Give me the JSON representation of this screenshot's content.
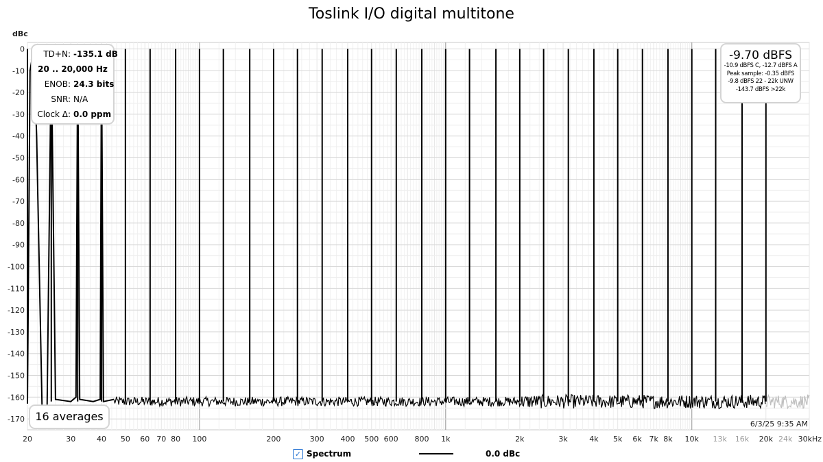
{
  "chart_data": {
    "type": "line",
    "title": "Toslink I/O digital multitone",
    "ylabel": "dBc",
    "xscale": "log",
    "xlim": [
      20,
      30000
    ],
    "ylim": [
      -175,
      3
    ],
    "y_ticks": [
      0,
      -10,
      -20,
      -30,
      -40,
      -50,
      -60,
      -70,
      -80,
      -90,
      -100,
      -110,
      -120,
      -130,
      -140,
      -150,
      -160,
      -170
    ],
    "x_ticks": [
      {
        "v": 20,
        "label": "20"
      },
      {
        "v": 30,
        "label": "30"
      },
      {
        "v": 40,
        "label": "40"
      },
      {
        "v": 50,
        "label": "50"
      },
      {
        "v": 60,
        "label": "60"
      },
      {
        "v": 70,
        "label": "70"
      },
      {
        "v": 80,
        "label": "80"
      },
      {
        "v": 100,
        "label": "100"
      },
      {
        "v": 200,
        "label": "200"
      },
      {
        "v": 300,
        "label": "300"
      },
      {
        "v": 400,
        "label": "400"
      },
      {
        "v": 500,
        "label": "500"
      },
      {
        "v": 600,
        "label": "600"
      },
      {
        "v": 800,
        "label": "800"
      },
      {
        "v": 1000,
        "label": "1k"
      },
      {
        "v": 2000,
        "label": "2k"
      },
      {
        "v": 3000,
        "label": "3k"
      },
      {
        "v": 4000,
        "label": "4k"
      },
      {
        "v": 5000,
        "label": "5k"
      },
      {
        "v": 6000,
        "label": "6k"
      },
      {
        "v": 7000,
        "label": "7k"
      },
      {
        "v": 8000,
        "label": "8k"
      },
      {
        "v": 10000,
        "label": "10k"
      },
      {
        "v": 13000,
        "label": "13k",
        "muted": true
      },
      {
        "v": 16000,
        "label": "16k",
        "muted": true
      },
      {
        "v": 20000,
        "label": "20k"
      },
      {
        "v": 24000,
        "label": "24k",
        "muted": true
      },
      {
        "v": 30000,
        "label": "30kHz"
      }
    ],
    "grid": true,
    "series": [
      {
        "name": "Spectrum",
        "color": "#000000",
        "tone_level_dBc": 0,
        "noise_floor_dBc": -162,
        "out_of_band_color": "#bfbfbf",
        "tone_frequencies_hz": [
          20,
          25,
          32,
          40,
          50,
          63,
          80,
          100,
          125,
          160,
          200,
          250,
          315,
          400,
          500,
          630,
          800,
          1000,
          1250,
          1600,
          2000,
          2500,
          3150,
          4000,
          5000,
          6300,
          8000,
          10000,
          12500,
          16000,
          20000
        ]
      }
    ]
  },
  "stats": {
    "tdn_label": "TD+N:",
    "tdn_value": "-135.1 dB",
    "band": "20 .. 20,000 Hz",
    "enob_label": "ENOB:",
    "enob_value": "24.3 bits",
    "snr_label": "SNR:",
    "snr_value": "N/A",
    "clock_label": "Clock Δ:",
    "clock_value": "0.0 ppm"
  },
  "level": {
    "main": "-9.70 dBFS",
    "line1": "-10.9 dBFS C, -12.7 dBFS A",
    "line2": "Peak sample: -0.35 dBFS",
    "line3": "-9.8 dBFS 22 - 22k UNW",
    "line4": "-143.7 dBFS >22k"
  },
  "averages": "16 averages",
  "timestamp": "6/3/25 9:35 AM",
  "legend": {
    "checkbox": "✓",
    "label": "Spectrum",
    "value": "0.0 dBc"
  }
}
